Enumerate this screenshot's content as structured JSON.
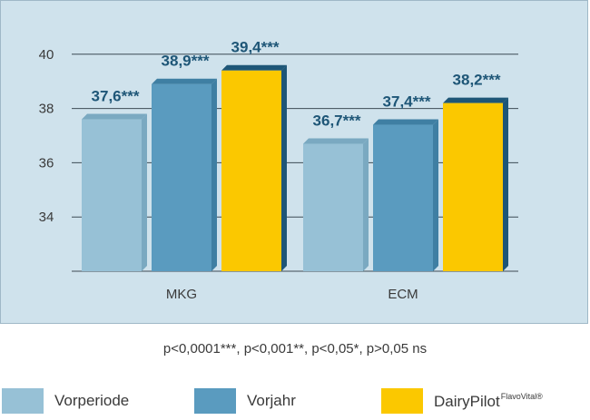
{
  "chart_data": {
    "type": "bar",
    "categories": [
      "MKG",
      "ECM"
    ],
    "series": [
      {
        "name": "Vorperiode",
        "values": [
          37.6,
          36.7
        ],
        "labels": [
          "37,6***",
          "36,7***"
        ],
        "color": "#97c1d6",
        "side": "#7aa9c1"
      },
      {
        "name": "Vorjahr",
        "values": [
          38.9,
          37.4
        ],
        "labels": [
          "38,9***",
          "37,4***"
        ],
        "color": "#5a9bbf",
        "side": "#3f7fa3"
      },
      {
        "name": "DairyPilot",
        "name_sup": "FlavoVital®",
        "values": [
          39.4,
          38.2
        ],
        "labels": [
          "39,4***",
          "38,2***"
        ],
        "color": "#fbc800",
        "side": "#1e5677"
      }
    ],
    "yticks": [
      34,
      36,
      38,
      40
    ],
    "ytick_labels": [
      "34",
      "36",
      "38",
      "40"
    ],
    "ylim": [
      32,
      40.5
    ],
    "grid": true,
    "legend_position": "bottom"
  },
  "footnote": "p<0,0001***, p<0,001**, p<0,05*, p>0,05 ns"
}
